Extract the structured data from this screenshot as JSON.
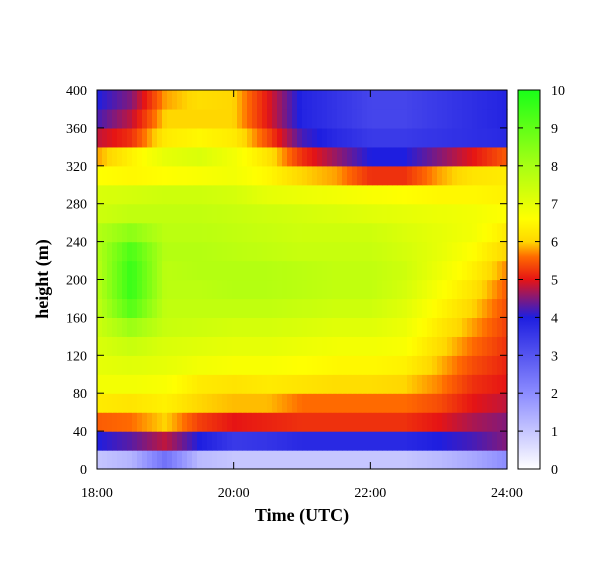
{
  "chart_data": {
    "type": "heatmap",
    "title": "",
    "xlabel": "Time (UTC)",
    "ylabel": "height (m)",
    "x_range_hours": [
      18,
      24
    ],
    "y_range_m": [
      0,
      400
    ],
    "x_tick_labels": [
      {
        "hour": 18,
        "label": "18:00"
      },
      {
        "hour": 20,
        "label": "20:00"
      },
      {
        "hour": 22,
        "label": "22:00"
      },
      {
        "hour": 24,
        "label": "24:00"
      }
    ],
    "y_ticks": [
      0,
      40,
      80,
      120,
      160,
      200,
      240,
      280,
      320,
      360,
      400
    ],
    "colorbar": {
      "range": [
        0,
        10
      ],
      "ticks": [
        0,
        1,
        2,
        3,
        4,
        5,
        6,
        7,
        8,
        9,
        10
      ],
      "colormap": [
        {
          "value": 0,
          "color": "#ffffff"
        },
        {
          "value": 2,
          "color": "#8c8cff"
        },
        {
          "value": 4,
          "color": "#1e1ee0"
        },
        {
          "value": 5,
          "color": "#e61414"
        },
        {
          "value": 5.6,
          "color": "#ff6a00"
        },
        {
          "value": 6,
          "color": "#ffd700"
        },
        {
          "value": 6.6,
          "color": "#ffff00"
        },
        {
          "value": 8,
          "color": "#a8ff14"
        },
        {
          "value": 10,
          "color": "#19ff19"
        }
      ]
    },
    "time_hours": [
      18.0,
      18.5,
      19.0,
      19.5,
      20.0,
      20.5,
      21.0,
      21.5,
      22.0,
      22.5,
      23.0,
      23.5,
      24.0
    ],
    "height_m": [
      10,
      30,
      50,
      70,
      90,
      110,
      130,
      150,
      170,
      190,
      210,
      230,
      250,
      270,
      290,
      310,
      330,
      350,
      370,
      390
    ],
    "values": [
      [
        1.0,
        1.3,
        2.5,
        1.2,
        1.0,
        1.0,
        1.0,
        1.0,
        1.0,
        1.0,
        1.2,
        1.5,
        2.0
      ],
      [
        4.0,
        4.3,
        4.8,
        4.0,
        3.5,
        3.6,
        3.8,
        3.8,
        3.8,
        3.8,
        4.0,
        4.2,
        4.5
      ],
      [
        5.5,
        5.6,
        6.0,
        5.3,
        5.0,
        5.1,
        5.2,
        5.2,
        5.2,
        5.2,
        5.0,
        4.7,
        4.5
      ],
      [
        6.3,
        6.2,
        6.4,
        6.0,
        5.9,
        5.9,
        5.6,
        5.6,
        5.6,
        5.6,
        5.4,
        5.0,
        4.8
      ],
      [
        6.8,
        6.8,
        6.7,
        6.3,
        6.2,
        6.3,
        6.2,
        6.1,
        6.1,
        6.0,
        5.7,
        5.2,
        5.0
      ],
      [
        7.0,
        7.1,
        7.0,
        6.8,
        6.7,
        6.7,
        6.6,
        6.5,
        6.5,
        6.4,
        5.9,
        5.4,
        5.1
      ],
      [
        7.2,
        7.5,
        7.2,
        7.1,
        7.0,
        7.0,
        6.9,
        6.8,
        6.8,
        6.7,
        6.1,
        5.6,
        5.2
      ],
      [
        7.4,
        8.2,
        7.5,
        7.4,
        7.3,
        7.3,
        7.2,
        7.1,
        7.1,
        6.9,
        6.3,
        5.8,
        5.3
      ],
      [
        7.6,
        9.2,
        7.6,
        7.6,
        7.6,
        7.6,
        7.5,
        7.4,
        7.4,
        7.1,
        6.5,
        6.0,
        5.4
      ],
      [
        7.7,
        9.6,
        7.7,
        7.7,
        7.8,
        7.8,
        7.7,
        7.6,
        7.6,
        7.3,
        6.7,
        6.2,
        5.5
      ],
      [
        7.7,
        9.6,
        7.7,
        7.8,
        7.8,
        7.8,
        7.7,
        7.6,
        7.6,
        7.4,
        6.9,
        6.4,
        5.7
      ],
      [
        7.8,
        9.3,
        7.8,
        7.8,
        7.7,
        7.6,
        7.5,
        7.5,
        7.5,
        7.3,
        7.0,
        6.6,
        6.0
      ],
      [
        7.8,
        8.4,
        7.7,
        7.7,
        7.6,
        7.5,
        7.4,
        7.4,
        7.4,
        7.2,
        7.0,
        6.8,
        6.3
      ],
      [
        7.4,
        7.6,
        7.6,
        7.6,
        7.5,
        7.4,
        7.3,
        7.2,
        7.1,
        7.0,
        6.9,
        6.8,
        6.6
      ],
      [
        7.2,
        7.3,
        7.4,
        7.4,
        7.3,
        7.0,
        6.9,
        6.8,
        6.7,
        6.6,
        6.5,
        6.5,
        6.4
      ],
      [
        6.6,
        6.5,
        6.6,
        6.7,
        6.8,
        6.5,
        6.0,
        5.8,
        5.2,
        5.2,
        5.8,
        6.2,
        6.3
      ],
      [
        5.8,
        6.4,
        7.0,
        7.2,
        6.8,
        6.2,
        5.2,
        4.6,
        4.0,
        4.0,
        4.5,
        5.0,
        5.5
      ],
      [
        4.8,
        5.2,
        6.3,
        6.5,
        6.3,
        5.4,
        4.2,
        3.8,
        3.5,
        3.5,
        3.6,
        3.7,
        3.8
      ],
      [
        4.2,
        4.8,
        6.0,
        6.0,
        6.0,
        5.0,
        3.9,
        3.6,
        3.3,
        3.3,
        3.5,
        3.7,
        3.9
      ],
      [
        4.0,
        4.5,
        5.8,
        6.1,
        6.0,
        5.0,
        3.9,
        3.6,
        3.3,
        3.3,
        3.5,
        3.7,
        3.9
      ]
    ]
  }
}
